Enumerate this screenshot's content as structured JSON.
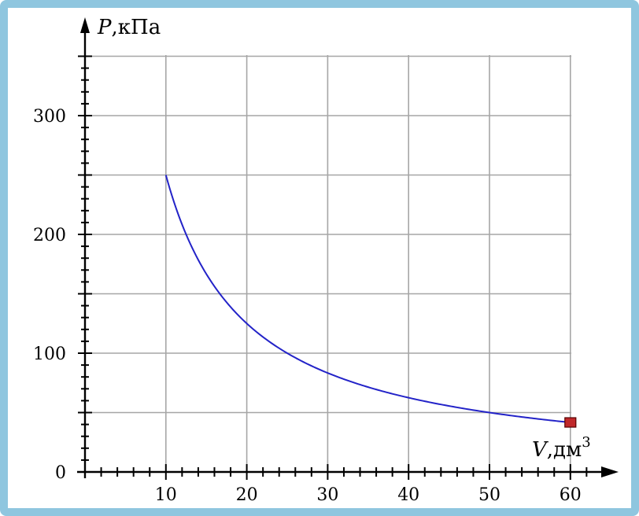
{
  "chart_data": {
    "type": "line",
    "title": "",
    "xlabel": {
      "var": "V",
      "unit": ",дм",
      "sup": "3"
    },
    "ylabel": {
      "var": "P",
      "unit": ",кПа"
    },
    "xlim": [
      0,
      65
    ],
    "ylim": [
      0,
      350
    ],
    "x_major_ticks": [
      10,
      20,
      30,
      40,
      50,
      60
    ],
    "x_tick_labels": [
      "10",
      "20",
      "30",
      "40",
      "50",
      "60"
    ],
    "y_major_ticks": [
      0,
      100,
      200,
      300
    ],
    "y_tick_labels": [
      "0",
      "100",
      "200",
      "300"
    ],
    "x_minor_step": 2,
    "y_minor_step": 10,
    "grid": true,
    "series": [
      {
        "color": "#2323c8",
        "function": "P = 2500 / V",
        "x": [
          10,
          11,
          12,
          13,
          14,
          15,
          16,
          18,
          20,
          22,
          25,
          28,
          30,
          35,
          40,
          45,
          50,
          55,
          60
        ],
        "y": [
          250,
          227.3,
          208.3,
          192.3,
          178.6,
          166.7,
          156.3,
          138.9,
          125,
          113.6,
          100,
          89.3,
          83.3,
          71.4,
          62.5,
          55.6,
          50,
          45.5,
          41.7
        ]
      }
    ],
    "marker": {
      "x": 60,
      "y": 41.7,
      "color": "#c0282a",
      "shape": "square"
    }
  }
}
